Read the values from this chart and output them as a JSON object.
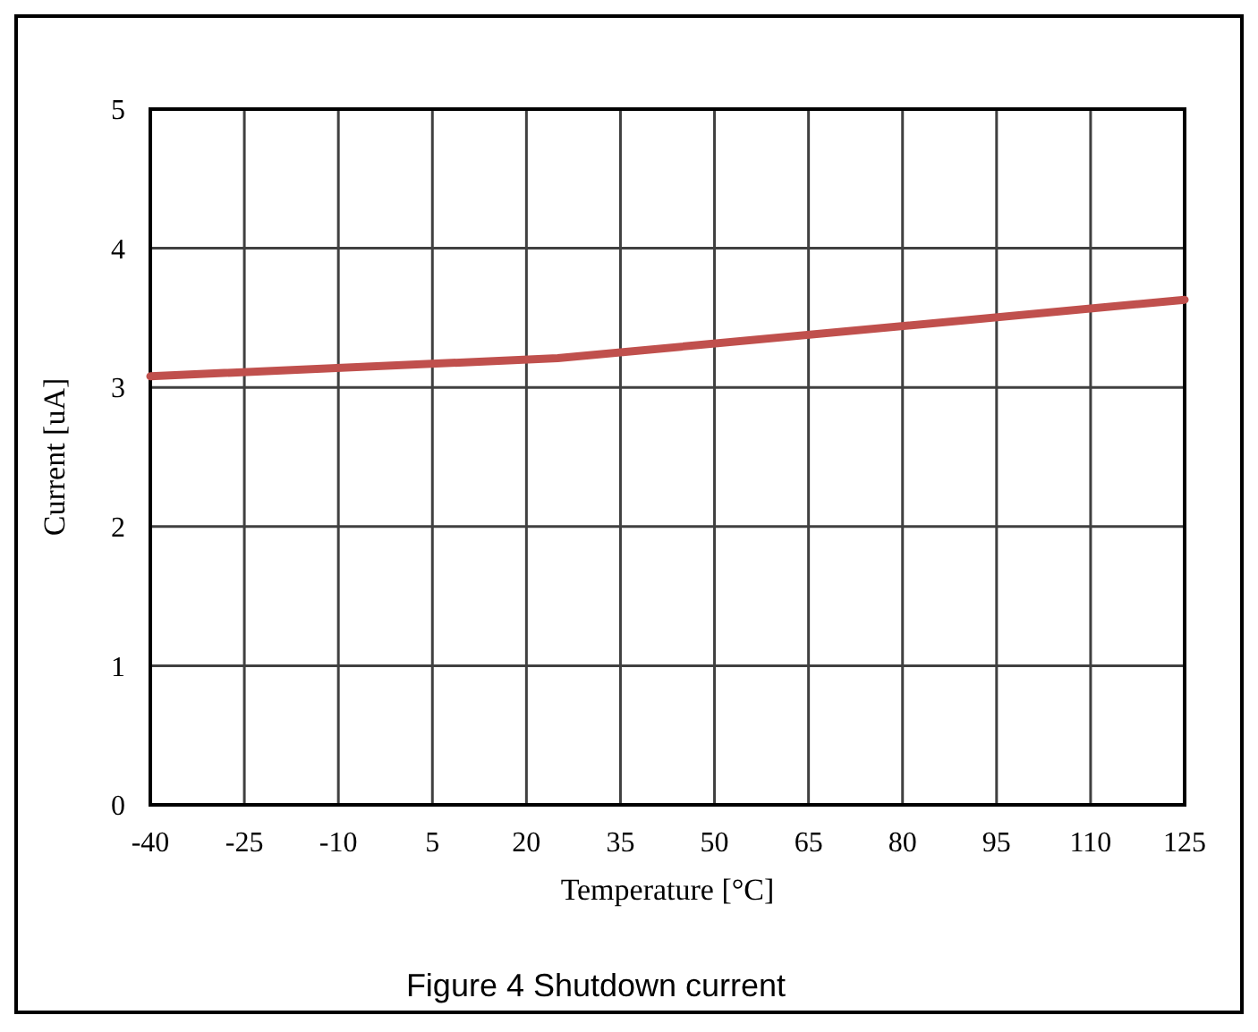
{
  "chart_data": {
    "type": "line",
    "xlabel": "Temperature [°C]",
    "ylabel": "Current [uA]",
    "annotations": [
      "Figure 4 Shutdown current"
    ],
    "x": [
      -40,
      25,
      125
    ],
    "series": [
      {
        "color": "#c0504d",
        "values": [
          3.08,
          3.21,
          3.63
        ]
      }
    ],
    "xlim": [
      -40,
      125
    ],
    "xticks": [
      -40,
      -25,
      -10,
      5,
      20,
      35,
      50,
      65,
      80,
      95,
      110,
      125
    ],
    "ylim": [
      0,
      5
    ],
    "yticks": [
      0,
      1,
      2,
      3,
      4,
      5
    ],
    "grid": true,
    "marker": "none",
    "line_style": "solid"
  }
}
